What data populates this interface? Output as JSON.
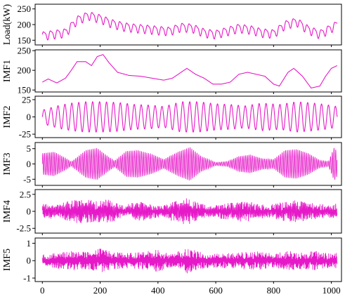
{
  "chart_data": [
    {
      "type": "line",
      "ylabel": "Load(kW)",
      "ylim": [
        135,
        265
      ],
      "yticks": [
        150,
        200,
        250
      ],
      "xlim": [
        -25,
        1035
      ],
      "color": "#e619c8",
      "series": [
        {
          "x": [
            0,
            40,
            80,
            120,
            160,
            200,
            240,
            280,
            320,
            360,
            400,
            440,
            480,
            520,
            560,
            600,
            640,
            680,
            720,
            760,
            800,
            840,
            880,
            920,
            960,
            1000,
            1020
          ],
          "values": [
            165,
            170,
            175,
            215,
            230,
            220,
            205,
            195,
            190,
            187,
            183,
            180,
            193,
            190,
            175,
            170,
            180,
            190,
            185,
            175,
            172,
            200,
            210,
            185,
            170,
            190,
            200
          ]
        }
      ]
    },
    {
      "type": "line",
      "ylabel": "IMF1",
      "ylim": [
        145,
        252
      ],
      "yticks": [
        150,
        200,
        250
      ],
      "xlim": [
        -25,
        1035
      ],
      "color": "#e619c8",
      "series": [
        {
          "x": [
            0,
            20,
            50,
            80,
            100,
            120,
            150,
            170,
            190,
            210,
            230,
            260,
            300,
            340,
            380,
            420,
            450,
            480,
            500,
            530,
            560,
            590,
            620,
            650,
            680,
            710,
            740,
            770,
            800,
            820,
            850,
            870,
            900,
            930,
            960,
            980,
            1000,
            1020
          ],
          "values": [
            170,
            178,
            168,
            180,
            200,
            222,
            222,
            212,
            235,
            240,
            220,
            195,
            187,
            185,
            180,
            175,
            180,
            195,
            205,
            190,
            180,
            165,
            165,
            170,
            190,
            195,
            190,
            185,
            165,
            160,
            195,
            205,
            185,
            155,
            160,
            185,
            205,
            212
          ]
        }
      ]
    },
    {
      "type": "line",
      "ylabel": "IMF2",
      "ylim": [
        -30,
        30
      ],
      "yticks": [
        -25,
        0,
        25
      ],
      "xlim": [
        -25,
        1035
      ],
      "color": "#e619c8",
      "series": [
        {
          "envelope_x": [
            0,
            60,
            100,
            150,
            200,
            260,
            320,
            380,
            420,
            480,
            540,
            600,
            650,
            700,
            760,
            820,
            880,
            940,
            980,
            1020
          ],
          "amplitude": [
            10,
            17,
            20,
            22,
            22,
            21,
            18,
            17,
            15,
            22,
            22,
            19,
            18,
            16,
            20,
            18,
            22,
            20,
            18,
            15
          ],
          "period": 24
        }
      ]
    },
    {
      "type": "line",
      "ylabel": "IMF3",
      "ylim": [
        -7,
        7
      ],
      "yticks": [
        -5,
        0,
        5
      ],
      "xlim": [
        -25,
        1035
      ],
      "color": "#e619c8",
      "series": [
        {
          "envelope_x": [
            0,
            40,
            80,
            100,
            150,
            190,
            220,
            250,
            290,
            330,
            380,
            420,
            470,
            510,
            550,
            600,
            640,
            680,
            720,
            760,
            800,
            840,
            880,
            920,
            960,
            990,
            1010,
            1020
          ],
          "amplitude": [
            3.5,
            4,
            2,
            0.7,
            4.5,
            5.2,
            3,
            1,
            4.2,
            4.5,
            3.2,
            1.5,
            4,
            5.5,
            2.5,
            0.5,
            0.8,
            2.5,
            3,
            1.8,
            1.5,
            4.5,
            4.8,
            3.5,
            1.2,
            0.8,
            5.5,
            4
          ],
          "period": 6
        }
      ]
    },
    {
      "type": "line",
      "ylabel": "IMF4",
      "ylim": [
        -3.2,
        3.2
      ],
      "yticks": [
        -2.5,
        0,
        2.5
      ],
      "xlim": [
        -25,
        1035
      ],
      "color": "#e619c8",
      "series": [
        {
          "envelope_x": [
            0,
            50,
            100,
            140,
            180,
            230,
            280,
            330,
            370,
            410,
            450,
            500,
            540,
            580,
            620,
            660,
            700,
            740,
            780,
            830,
            880,
            920,
            960,
            1000,
            1020
          ],
          "amplitude": [
            1.3,
            1.1,
            1.8,
            2.0,
            1.7,
            1.9,
            1.0,
            1.6,
            1.3,
            0.8,
            1.5,
            2.2,
            1.4,
            0.8,
            1.2,
            1.4,
            1.8,
            1.2,
            1.0,
            1.5,
            1.8,
            1.4,
            1.2,
            1.0,
            1.3
          ],
          "period": 3
        }
      ]
    },
    {
      "type": "line",
      "ylabel": "IMF5",
      "ylim": [
        -1.2,
        1.3
      ],
      "yticks": [
        -1,
        0,
        1
      ],
      "xlim": [
        -25,
        1035
      ],
      "color": "#e619c8",
      "series": [
        {
          "envelope_x": [
            0,
            50,
            100,
            150,
            200,
            250,
            300,
            350,
            400,
            450,
            500,
            550,
            600,
            650,
            700,
            750,
            800,
            850,
            900,
            950,
            1000,
            1020
          ],
          "amplitude": [
            0.35,
            0.45,
            0.6,
            0.5,
            0.7,
            0.5,
            0.45,
            0.5,
            0.65,
            0.4,
            0.75,
            0.5,
            0.4,
            0.45,
            0.5,
            0.55,
            0.4,
            0.6,
            0.5,
            0.55,
            0.4,
            0.45
          ],
          "period": 2
        }
      ]
    }
  ],
  "xaxis": {
    "ticks": [
      0,
      200,
      400,
      600,
      800,
      1000
    ]
  }
}
